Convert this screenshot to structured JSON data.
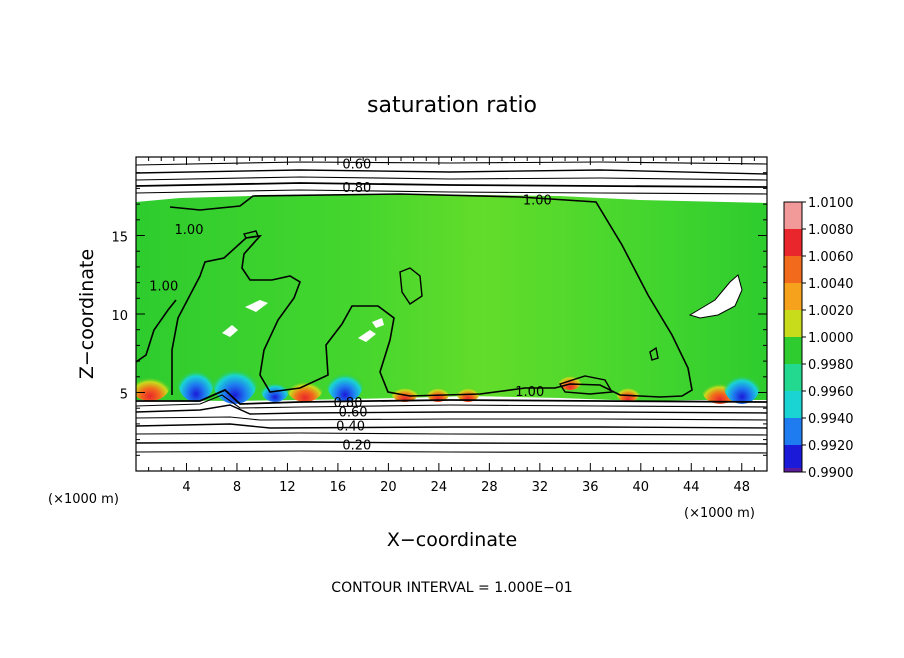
{
  "chart_data": {
    "type": "heatmap",
    "title": "saturation ratio",
    "xlabel": "X−coordinate",
    "ylabel": "Z−coordinate",
    "x_unit_left": "(×1000 m)",
    "x_unit_right": "(×1000 m)",
    "xlim": [
      0,
      50
    ],
    "ylim": [
      0,
      20
    ],
    "x_ticks": [
      4,
      8,
      12,
      16,
      20,
      24,
      28,
      32,
      36,
      40,
      44,
      48
    ],
    "y_ticks": [
      5,
      10,
      15
    ],
    "footer": "CONTOUR INTERVAL = 1.000E−01",
    "colorbar": {
      "levels": [
        "1.0100",
        "1.0080",
        "1.0060",
        "1.0040",
        "1.0020",
        "1.0000",
        "0.9980",
        "0.9960",
        "0.9940",
        "0.9920",
        "0.9900"
      ],
      "colors": [
        "#f29a9a",
        "#e8262c",
        "#f26a1c",
        "#f7a21c",
        "#c8dc1c",
        "#2ecc2e",
        "#22d98f",
        "#1ad4d4",
        "#1e7cf0",
        "#1a1ad8",
        "#5a1a9a"
      ]
    },
    "contour_labels": [
      {
        "label": "0.60",
        "x": 17.5,
        "z": 19.6
      },
      {
        "label": "0.80",
        "x": 17.5,
        "z": 18.1
      },
      {
        "label": "1.00",
        "x": 31.8,
        "z": 17.3
      },
      {
        "label": "1.00",
        "x": 4.2,
        "z": 15.4
      },
      {
        "label": "1.00",
        "x": 2.2,
        "z": 11.8
      },
      {
        "label": "1.00",
        "x": 31.2,
        "z": 5.1
      },
      {
        "label": "0.80",
        "x": 16.8,
        "z": 4.4
      },
      {
        "label": "0.60",
        "x": 17.2,
        "z": 3.8
      },
      {
        "label": "0.40",
        "x": 17.0,
        "z": 2.9
      },
      {
        "label": "0.20",
        "x": 17.5,
        "z": 1.7
      }
    ]
  }
}
